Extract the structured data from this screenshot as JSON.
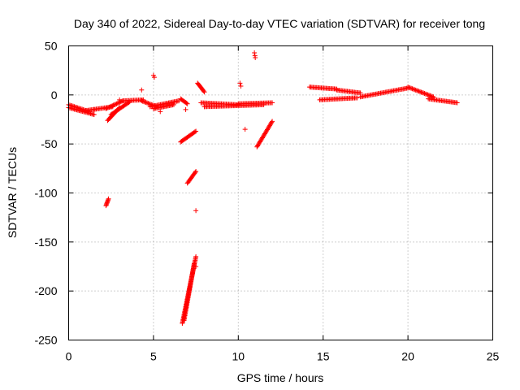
{
  "chart_data": {
    "type": "scatter",
    "title": "Day 340 of 2022, Sidereal Day-to-day VTEC variation (SDTVAR) for receiver tong",
    "xlabel": "GPS time / hours",
    "ylabel": "SDTVAR / TECUs",
    "xlim": [
      0,
      25
    ],
    "ylim": [
      -250,
      50
    ],
    "x_ticks": [
      0,
      5,
      10,
      15,
      20,
      25
    ],
    "x_tick_labels": [
      "0",
      "5",
      "10",
      "15",
      "20",
      "25"
    ],
    "y_ticks": [
      50,
      0,
      -50,
      -100,
      -150,
      -200,
      -250
    ],
    "y_tick_labels": [
      "50",
      "0",
      "-50",
      "-100",
      "-150",
      "-200",
      "-250"
    ],
    "grid": true,
    "marker": "+",
    "series": [
      {
        "name": "SDTVAR",
        "color": "#ff0000",
        "segments": [
          {
            "from": [
              0.0,
              -10
            ],
            "to": [
              1.2,
              -17
            ]
          },
          {
            "from": [
              0.0,
              -13
            ],
            "to": [
              1.5,
              -20
            ]
          },
          {
            "from": [
              1.0,
              -16
            ],
            "to": [
              2.6,
              -12
            ]
          },
          {
            "from": [
              2.2,
              -14
            ],
            "to": [
              3.2,
              -6
            ]
          },
          {
            "from": [
              2.3,
              -26
            ],
            "to": [
              3.0,
              -13
            ]
          },
          {
            "from": [
              2.5,
              -20
            ],
            "to": [
              3.6,
              -7
            ]
          },
          {
            "from": [
              3.2,
              -6
            ],
            "to": [
              4.4,
              -5
            ]
          },
          {
            "from": [
              4.3,
              -6
            ],
            "to": [
              5.2,
              -12
            ]
          },
          {
            "from": [
              4.8,
              -12
            ],
            "to": [
              6.5,
              -6
            ]
          },
          {
            "from": [
              5.0,
              -14
            ],
            "to": [
              6.2,
              -10
            ]
          },
          {
            "from": [
              6.6,
              -4
            ],
            "to": [
              7.0,
              -9
            ]
          },
          {
            "from": [
              7.6,
              12
            ],
            "to": [
              8.0,
              3
            ]
          },
          {
            "from": [
              7.8,
              -8
            ],
            "to": [
              10.0,
              -10
            ]
          },
          {
            "from": [
              8.0,
              -12
            ],
            "to": [
              11.5,
              -10
            ]
          },
          {
            "from": [
              10.0,
              -9
            ],
            "to": [
              12.0,
              -8
            ]
          },
          {
            "from": [
              14.2,
              8
            ],
            "to": [
              15.8,
              6
            ]
          },
          {
            "from": [
              14.8,
              -5
            ],
            "to": [
              17.0,
              -3
            ]
          },
          {
            "from": [
              15.8,
              5
            ],
            "to": [
              17.2,
              2
            ]
          },
          {
            "from": [
              17.2,
              -2
            ],
            "to": [
              20.0,
              7
            ]
          },
          {
            "from": [
              20.0,
              8
            ],
            "to": [
              21.5,
              -2
            ]
          },
          {
            "from": [
              21.2,
              -4
            ],
            "to": [
              22.9,
              -8
            ]
          },
          {
            "from": [
              6.6,
              -48
            ],
            "to": [
              7.5,
              -37
            ]
          },
          {
            "from": [
              7.0,
              -90
            ],
            "to": [
              7.5,
              -78
            ]
          },
          {
            "from": [
              6.7,
              -233
            ],
            "to": [
              7.5,
              -165
            ]
          },
          {
            "from": [
              6.8,
              -230
            ],
            "to": [
              7.4,
              -172
            ]
          },
          {
            "from": [
              11.1,
              -53
            ],
            "to": [
              12.0,
              -27
            ]
          },
          {
            "from": [
              2.2,
              -113
            ],
            "to": [
              2.35,
              -106
            ]
          }
        ],
        "points": [
          [
            1.5,
            -15
          ],
          [
            3.0,
            -5
          ],
          [
            4.3,
            5
          ],
          [
            5.0,
            20
          ],
          [
            5.05,
            18
          ],
          [
            7.5,
            -118
          ],
          [
            7.5,
            -175
          ],
          [
            10.1,
            12
          ],
          [
            10.15,
            9
          ],
          [
            10.4,
            -35
          ],
          [
            10.95,
            43
          ],
          [
            10.98,
            40
          ],
          [
            11.0,
            38
          ],
          [
            6.9,
            -15
          ],
          [
            5.4,
            -17
          ]
        ]
      }
    ]
  }
}
